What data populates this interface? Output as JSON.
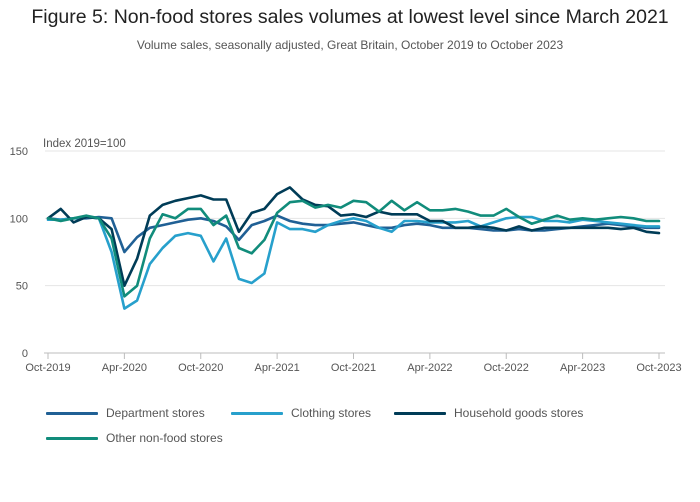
{
  "page": {
    "title": "Figure 5: Non-food stores sales volumes at lowest level since March 2021",
    "subtitle": "Volume sales, seasonally adjusted, Great Britain, October 2019 to October 2023"
  },
  "chart_data": {
    "type": "line",
    "unit_label": "Index 2019=100",
    "ylim": [
      0,
      150
    ],
    "yticks": [
      0,
      50,
      100,
      150
    ],
    "grid": true,
    "legend_position": "bottom",
    "x": [
      "Oct-2019",
      "Nov-2019",
      "Dec-2019",
      "Jan-2020",
      "Feb-2020",
      "Mar-2020",
      "Apr-2020",
      "May-2020",
      "Jun-2020",
      "Jul-2020",
      "Aug-2020",
      "Sep-2020",
      "Oct-2020",
      "Nov-2020",
      "Dec-2020",
      "Jan-2021",
      "Feb-2021",
      "Mar-2021",
      "Apr-2021",
      "May-2021",
      "Jun-2021",
      "Jul-2021",
      "Aug-2021",
      "Sep-2021",
      "Oct-2021",
      "Nov-2021",
      "Dec-2021",
      "Jan-2022",
      "Feb-2022",
      "Mar-2022",
      "Apr-2022",
      "May-2022",
      "Jun-2022",
      "Jul-2022",
      "Aug-2022",
      "Sep-2022",
      "Oct-2022",
      "Nov-2022",
      "Dec-2022",
      "Jan-2023",
      "Feb-2023",
      "Mar-2023",
      "Apr-2023",
      "May-2023",
      "Jun-2023",
      "Jul-2023",
      "Aug-2023",
      "Sep-2023",
      "Oct-2023"
    ],
    "xtick_labels": [
      "Oct-2019",
      "Apr-2020",
      "Oct-2020",
      "Apr-2021",
      "Oct-2021",
      "Apr-2022",
      "Oct-2022",
      "Apr-2023",
      "Oct-2023"
    ],
    "series": [
      {
        "name": "Department stores",
        "color": "#206095",
        "values": [
          100,
          99,
          100,
          100,
          101,
          100,
          75,
          86,
          93,
          95,
          97,
          99,
          100,
          98,
          94,
          84,
          95,
          98,
          102,
          98,
          96,
          95,
          95,
          96,
          97,
          95,
          93,
          93,
          95,
          96,
          95,
          93,
          93,
          93,
          92,
          91,
          91,
          92,
          91,
          91,
          92,
          93,
          94,
          95,
          96,
          95,
          94,
          93,
          93
        ]
      },
      {
        "name": "Clothing stores",
        "color": "#27a0cc",
        "values": [
          99,
          99,
          100,
          101,
          100,
          75,
          33,
          39,
          66,
          78,
          87,
          89,
          87,
          68,
          85,
          55,
          52,
          59,
          97,
          92,
          92,
          90,
          95,
          98,
          100,
          98,
          93,
          90,
          98,
          98,
          97,
          97,
          97,
          98,
          94,
          97,
          100,
          101,
          101,
          98,
          98,
          97,
          99,
          98,
          97,
          96,
          95,
          94,
          94
        ]
      },
      {
        "name": "Household goods stores",
        "color": "#003c57",
        "values": [
          100,
          107,
          97,
          101,
          100,
          92,
          50,
          70,
          102,
          110,
          113,
          115,
          117,
          114,
          114,
          90,
          104,
          107,
          118,
          123,
          114,
          110,
          109,
          102,
          103,
          101,
          105,
          103,
          103,
          103,
          98,
          98,
          93,
          93,
          94,
          93,
          91,
          94,
          91,
          93,
          93,
          93,
          93,
          93,
          93,
          92,
          93,
          90,
          89
        ]
      },
      {
        "name": "Other non-food stores",
        "color": "#118c7b",
        "values": [
          100,
          98,
          100,
          102,
          100,
          85,
          42,
          50,
          85,
          103,
          100,
          107,
          107,
          95,
          102,
          78,
          74,
          84,
          104,
          112,
          113,
          108,
          110,
          108,
          113,
          112,
          105,
          113,
          106,
          112,
          106,
          106,
          107,
          105,
          102,
          102,
          107,
          101,
          96,
          99,
          102,
          99,
          100,
          99,
          100,
          101,
          100,
          98,
          98
        ]
      }
    ]
  }
}
